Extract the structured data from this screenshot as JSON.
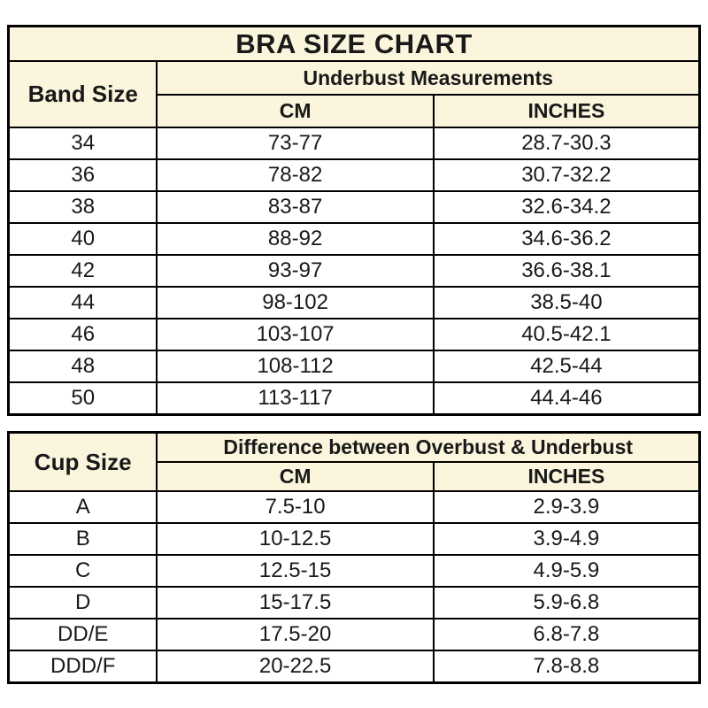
{
  "colors": {
    "header_bg": "#FAF5DC",
    "row_bg": "#ffffff",
    "border": "#000000",
    "text": "#191919"
  },
  "band_table": {
    "title": "BRA SIZE CHART",
    "col1_header": "Band Size",
    "group_header": "Underbust Measurements",
    "subheaders": [
      "CM",
      "INCHES"
    ],
    "rows": [
      [
        "34",
        "73-77",
        "28.7-30.3"
      ],
      [
        "36",
        "78-82",
        "30.7-32.2"
      ],
      [
        "38",
        "83-87",
        "32.6-34.2"
      ],
      [
        "40",
        "88-92",
        "34.6-36.2"
      ],
      [
        "42",
        "93-97",
        "36.6-38.1"
      ],
      [
        "44",
        "98-102",
        "38.5-40"
      ],
      [
        "46",
        "103-107",
        "40.5-42.1"
      ],
      [
        "48",
        "108-112",
        "42.5-44"
      ],
      [
        "50",
        "113-117",
        "44.4-46"
      ]
    ]
  },
  "cup_table": {
    "col1_header": "Cup Size",
    "group_header": "Difference between Overbust & Underbust",
    "subheaders": [
      "CM",
      "INCHES"
    ],
    "rows": [
      [
        "A",
        "7.5-10",
        "2.9-3.9"
      ],
      [
        "B",
        "10-12.5",
        "3.9-4.9"
      ],
      [
        "C",
        "12.5-15",
        "4.9-5.9"
      ],
      [
        "D",
        "15-17.5",
        "5.9-6.8"
      ],
      [
        "DD/E",
        "17.5-20",
        "6.8-7.8"
      ],
      [
        "DDD/F",
        "20-22.5",
        "7.8-8.8"
      ]
    ]
  },
  "chart_data": [
    {
      "type": "table",
      "title": "BRA SIZE CHART",
      "columns": [
        "Band Size",
        "Underbust Measurements CM",
        "Underbust Measurements INCHES"
      ],
      "rows": [
        [
          "34",
          "73-77",
          "28.7-30.3"
        ],
        [
          "36",
          "78-82",
          "30.7-32.2"
        ],
        [
          "38",
          "83-87",
          "32.6-34.2"
        ],
        [
          "40",
          "88-92",
          "34.6-36.2"
        ],
        [
          "42",
          "93-97",
          "36.6-38.1"
        ],
        [
          "44",
          "98-102",
          "38.5-40"
        ],
        [
          "46",
          "103-107",
          "40.5-42.1"
        ],
        [
          "48",
          "108-112",
          "42.5-44"
        ],
        [
          "50",
          "113-117",
          "44.4-46"
        ]
      ]
    },
    {
      "type": "table",
      "title": "Cup Size",
      "columns": [
        "Cup Size",
        "Difference between Overbust & Underbust CM",
        "Difference between Overbust & Underbust INCHES"
      ],
      "rows": [
        [
          "A",
          "7.5-10",
          "2.9-3.9"
        ],
        [
          "B",
          "10-12.5",
          "3.9-4.9"
        ],
        [
          "C",
          "12.5-15",
          "4.9-5.9"
        ],
        [
          "D",
          "15-17.5",
          "5.9-6.8"
        ],
        [
          "DD/E",
          "17.5-20",
          "6.8-7.8"
        ],
        [
          "DDD/F",
          "20-22.5",
          "7.8-8.8"
        ]
      ]
    }
  ]
}
